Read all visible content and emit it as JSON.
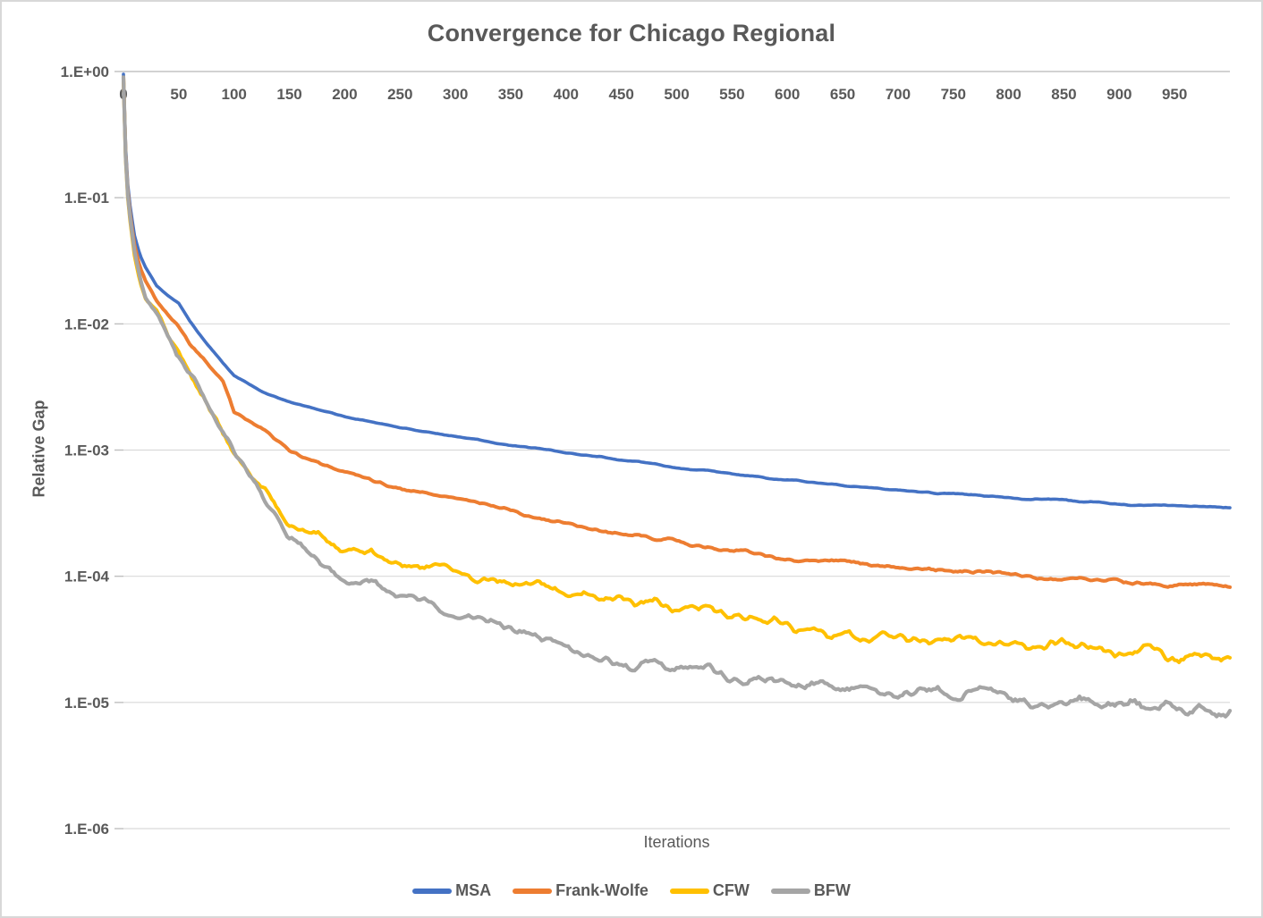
{
  "window": {
    "background": "#ffffff",
    "border_color": "#d8d8d8"
  },
  "chart_data": {
    "type": "line",
    "title": "Convergence for Chicago Regional",
    "xlabel": "Iterations",
    "ylabel": "Relative Gap",
    "grid": true,
    "legend_position": "bottom",
    "x_axis": {
      "min": 0,
      "max": 1000,
      "tick_interval": 50,
      "tick_labels": [
        0,
        50,
        100,
        150,
        200,
        250,
        300,
        350,
        400,
        450,
        500,
        550,
        600,
        650,
        700,
        750,
        800,
        850,
        900,
        950
      ],
      "labels_position": "below top axis"
    },
    "y_axis": {
      "scale": "log",
      "min": 1e-06,
      "max": 1,
      "tick_labels": [
        "1.E+00",
        "1.E-01",
        "1.E-02",
        "1.E-03",
        "1.E-04",
        "1.E-05",
        "1.E-06"
      ]
    },
    "colors": {
      "grid": "#d9d9d9",
      "axis_line": "#c3c3c3",
      "tick": "#bfbfbf",
      "text": "#595959"
    },
    "series": [
      {
        "name": "MSA",
        "color": "#4472C4",
        "line_width": 3.6,
        "noise": 0.01,
        "points": [
          [
            0,
            0.95
          ],
          [
            1,
            0.45
          ],
          [
            2,
            0.25
          ],
          [
            3,
            0.16
          ],
          [
            5,
            0.1
          ],
          [
            7,
            0.075
          ],
          [
            10,
            0.05
          ],
          [
            15,
            0.035
          ],
          [
            20,
            0.028
          ],
          [
            30,
            0.02
          ],
          [
            40,
            0.0168
          ],
          [
            50,
            0.0147
          ],
          [
            60,
            0.0105
          ],
          [
            75,
            0.007
          ],
          [
            90,
            0.0049
          ],
          [
            100,
            0.0039
          ],
          [
            125,
            0.0029
          ],
          [
            150,
            0.0024
          ],
          [
            175,
            0.0021
          ],
          [
            200,
            0.00185
          ],
          [
            250,
            0.00152
          ],
          [
            300,
            0.00128
          ],
          [
            350,
            0.0011
          ],
          [
            400,
            0.00096
          ],
          [
            450,
            0.00084
          ],
          [
            500,
            0.00073
          ],
          [
            550,
            0.00065
          ],
          [
            600,
            0.00058
          ],
          [
            650,
            0.00053
          ],
          [
            700,
            0.00048
          ],
          [
            750,
            0.00045
          ],
          [
            800,
            0.00042
          ],
          [
            850,
            0.0004
          ],
          [
            900,
            0.00037
          ],
          [
            950,
            0.00036
          ],
          [
            1000,
            0.00035
          ]
        ]
      },
      {
        "name": "Frank-Wolfe",
        "color": "#ED7D31",
        "line_width": 4,
        "noise": 0.03,
        "points": [
          [
            0,
            0.9
          ],
          [
            1,
            0.4
          ],
          [
            2,
            0.22
          ],
          [
            3,
            0.14
          ],
          [
            5,
            0.09
          ],
          [
            7,
            0.063
          ],
          [
            10,
            0.042
          ],
          [
            15,
            0.028
          ],
          [
            20,
            0.022
          ],
          [
            30,
            0.0155
          ],
          [
            40,
            0.0122
          ],
          [
            50,
            0.0097
          ],
          [
            60,
            0.0069
          ],
          [
            75,
            0.005
          ],
          [
            90,
            0.0035
          ],
          [
            100,
            0.002
          ],
          [
            125,
            0.0015
          ],
          [
            150,
            0.001
          ],
          [
            175,
            0.00082
          ],
          [
            200,
            0.00068
          ],
          [
            250,
            0.00051
          ],
          [
            300,
            0.00041
          ],
          [
            350,
            0.00033
          ],
          [
            400,
            0.000265
          ],
          [
            450,
            0.00022
          ],
          [
            500,
            0.00019
          ],
          [
            550,
            0.00016
          ],
          [
            600,
            0.00014
          ],
          [
            650,
            0.000129
          ],
          [
            700,
            0.00012
          ],
          [
            750,
            0.000111
          ],
          [
            800,
            0.000103
          ],
          [
            850,
            9.6e-05
          ],
          [
            900,
            9.1e-05
          ],
          [
            950,
            8.7e-05
          ],
          [
            1000,
            8.5e-05
          ]
        ]
      },
      {
        "name": "CFW",
        "color": "#FFC000",
        "line_width": 4,
        "noise": 0.082,
        "points": [
          [
            0,
            0.9
          ],
          [
            1,
            0.35
          ],
          [
            2,
            0.2
          ],
          [
            3,
            0.126
          ],
          [
            5,
            0.079
          ],
          [
            7,
            0.056
          ],
          [
            10,
            0.035
          ],
          [
            15,
            0.022
          ],
          [
            20,
            0.0158
          ],
          [
            30,
            0.0125
          ],
          [
            40,
            0.0082
          ],
          [
            50,
            0.006
          ],
          [
            60,
            0.0042
          ],
          [
            75,
            0.0026
          ],
          [
            90,
            0.0014
          ],
          [
            100,
            0.00095
          ],
          [
            125,
            0.0005
          ],
          [
            150,
            0.00026
          ],
          [
            175,
            0.000205
          ],
          [
            200,
            0.000165
          ],
          [
            250,
            0.00013
          ],
          [
            300,
            0.00011
          ],
          [
            350,
            9.1e-05
          ],
          [
            400,
            7.8e-05
          ],
          [
            450,
            6.5e-05
          ],
          [
            500,
            5.6e-05
          ],
          [
            550,
            4.7e-05
          ],
          [
            600,
            4.1e-05
          ],
          [
            650,
            3.65e-05
          ],
          [
            700,
            3.3e-05
          ],
          [
            750,
            3.1e-05
          ],
          [
            800,
            2.9e-05
          ],
          [
            850,
            2.7e-05
          ],
          [
            900,
            2.57e-05
          ],
          [
            950,
            2.46e-05
          ],
          [
            1000,
            2.4e-05
          ]
        ]
      },
      {
        "name": "BFW",
        "color": "#A5A5A5",
        "line_width": 4.2,
        "noise": 0.085,
        "points": [
          [
            0,
            0.9
          ],
          [
            1,
            0.4
          ],
          [
            2,
            0.21
          ],
          [
            3,
            0.132
          ],
          [
            5,
            0.083
          ],
          [
            7,
            0.06
          ],
          [
            10,
            0.038
          ],
          [
            15,
            0.024
          ],
          [
            20,
            0.0166
          ],
          [
            30,
            0.012
          ],
          [
            40,
            0.0078
          ],
          [
            50,
            0.0056
          ],
          [
            60,
            0.004
          ],
          [
            75,
            0.0024
          ],
          [
            90,
            0.0013
          ],
          [
            100,
            0.0009
          ],
          [
            125,
            0.00046
          ],
          [
            150,
            0.0002
          ],
          [
            175,
            0.000135
          ],
          [
            200,
            0.000102
          ],
          [
            250,
            7e-05
          ],
          [
            300,
            5e-05
          ],
          [
            350,
            3.55e-05
          ],
          [
            400,
            2.6e-05
          ],
          [
            450,
            2.15e-05
          ],
          [
            500,
            1.9e-05
          ],
          [
            550,
            1.63e-05
          ],
          [
            600,
            1.42e-05
          ],
          [
            650,
            1.32e-05
          ],
          [
            700,
            1.23e-05
          ],
          [
            725,
            1.33e-05
          ],
          [
            750,
            1.18e-05
          ],
          [
            800,
            1.06e-05
          ],
          [
            850,
            9.8e-06
          ],
          [
            900,
            9.5e-06
          ],
          [
            950,
            8.8e-06
          ],
          [
            1000,
            9e-06
          ]
        ]
      }
    ]
  }
}
